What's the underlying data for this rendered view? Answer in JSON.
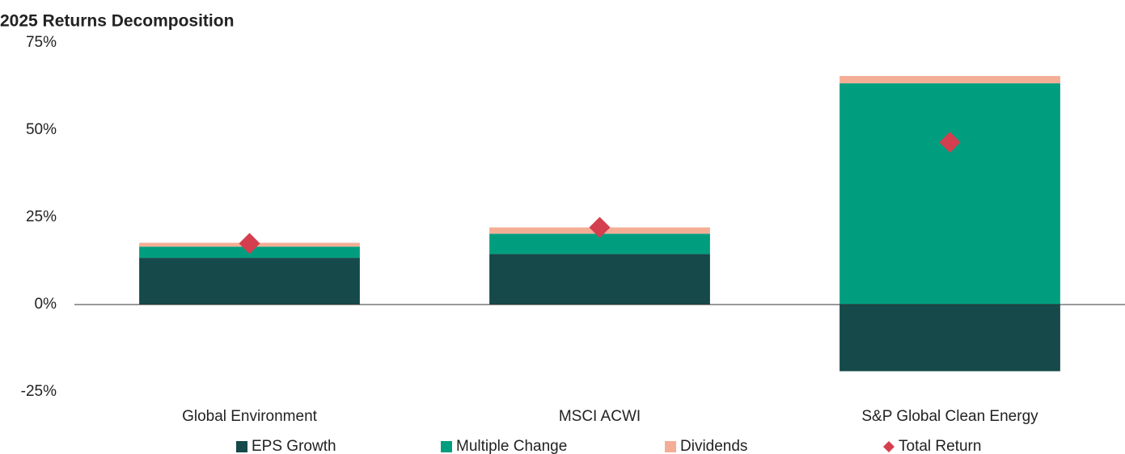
{
  "chart_data": {
    "type": "bar",
    "title": "2025 Returns Decomposition",
    "categories": [
      "Global Environment",
      "MSCI ACWI",
      "S&P Global Clean Energy"
    ],
    "series": [
      {
        "name": "EPS Growth",
        "color": "#15494a",
        "values": [
          13.4,
          14.5,
          -19.1
        ]
      },
      {
        "name": "Multiple Change",
        "color": "#009e7f",
        "values": [
          3.2,
          5.8,
          63.4
        ]
      },
      {
        "name": "Dividends",
        "color": "#f4ae96",
        "values": [
          1.1,
          1.8,
          2.1
        ]
      },
      {
        "name": "Total Return",
        "color": "#d43f4f",
        "type": "scatter",
        "values": [
          17.5,
          22.1,
          46.5
        ]
      }
    ],
    "ylim": [
      -25,
      75
    ],
    "yticks": [
      {
        "value": 75,
        "label": "75%"
      },
      {
        "value": 50,
        "label": "50%"
      },
      {
        "value": 25,
        "label": "25%"
      },
      {
        "value": 0,
        "label": "0%"
      },
      {
        "value": -25,
        "label": "-25%"
      }
    ],
    "grid": false,
    "legend": "bottom"
  }
}
